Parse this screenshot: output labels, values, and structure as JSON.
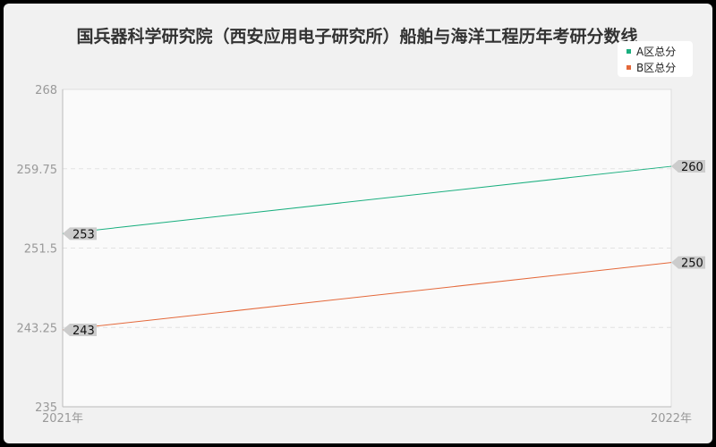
{
  "chart_data": {
    "type": "line",
    "title": "国兵器科学研究院（西安应用电子研究所）船舶与海洋工程历年考研分数线",
    "categories": [
      "2021年",
      "2022年"
    ],
    "ylim": [
      235,
      268
    ],
    "yticks": [
      "268",
      "259.75",
      "251.5",
      "243.25",
      "235"
    ],
    "grid": true,
    "legend_position": "top-right",
    "series": [
      {
        "name": "A区总分",
        "values": [
          253,
          260
        ],
        "labels": [
          "253",
          "260"
        ],
        "color": "#1aaf7f"
      },
      {
        "name": "B区总分",
        "values": [
          243,
          250
        ],
        "labels": [
          "243",
          "250"
        ],
        "color": "#e4683a"
      }
    ]
  }
}
